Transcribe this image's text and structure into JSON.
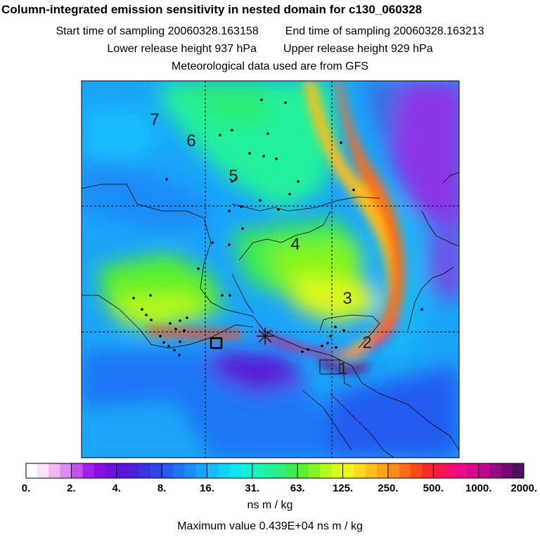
{
  "title": "Column-integrated emission sensitivity in nested domain for c130_060328",
  "sampling": {
    "start": "Start time of sampling 20060328.163158",
    "end": "End time of sampling 20060328.163213"
  },
  "release": {
    "lower": "Lower release height  937 hPa",
    "upper": "Upper release height  929 hPa"
  },
  "met_note": "Meteorological data used are from GFS",
  "chart_data": {
    "type": "heatmap",
    "colorbar": {
      "tick_labels": [
        "0.",
        "2.",
        "4.",
        "8.",
        "16.",
        "31.",
        "63.",
        "125.",
        "250.",
        "500.",
        "1000.",
        "2000."
      ],
      "colors": [
        "#ffffff",
        "#fbe1fb",
        "#f2b7f3",
        "#de8cf2",
        "#c451ee",
        "#a321eb",
        "#8a0de6",
        "#6e10de",
        "#5a16d6",
        "#4d22d6",
        "#3d33de",
        "#2e46e6",
        "#245cf0",
        "#1f74f5",
        "#1c8cf8",
        "#1aa4f9",
        "#17bcfa",
        "#13d2f8",
        "#10e5ef",
        "#12f0d8",
        "#18f2bb",
        "#20f09c",
        "#2cee78",
        "#3cec4f",
        "#5af02c",
        "#86f51f",
        "#b3f81e",
        "#d9f81e",
        "#f3f01f",
        "#fbd91e",
        "#fdbf1c",
        "#fda41b",
        "#fd8a1a",
        "#fd6c19",
        "#fd4a1a",
        "#fd2b2a",
        "#f8164a",
        "#f40d6e",
        "#ea0a8c",
        "#d6088f",
        "#b9088c",
        "#960a83",
        "#740b74",
        "#501060"
      ]
    },
    "contour_labels": [
      "7",
      "6",
      "5",
      "4",
      "3",
      "2",
      "1"
    ],
    "units": "ns m / kg",
    "max_value_text": "Maximum value  0.439E+04 ns m / kg"
  }
}
